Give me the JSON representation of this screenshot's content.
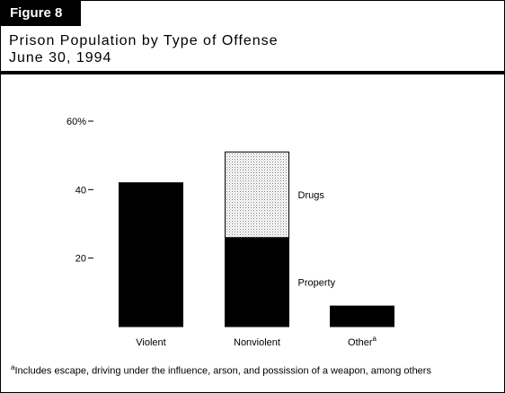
{
  "figure_label": "Figure 8",
  "title_line1": "Prison Population by Type of Offense",
  "title_line2": "June 30, 1994",
  "footnote_marker": "a",
  "footnote_text": "Includes escape, driving under the influence, arson, and possission of a weapon, among others",
  "colors": {
    "bar": "#000000",
    "drugs_pattern": "#9a9a9a"
  },
  "chart_data": {
    "type": "bar",
    "stacked": true,
    "categories": [
      "Violent",
      "Nonviolent",
      "Other"
    ],
    "category_superscripts": [
      "",
      "",
      "a"
    ],
    "series": [
      {
        "name": "Property",
        "values": [
          42,
          26,
          6
        ]
      },
      {
        "name": "Drugs",
        "values": [
          0,
          25,
          0
        ]
      }
    ],
    "ylim": [
      0,
      60
    ],
    "yticks": [
      20,
      40,
      60
    ],
    "ytick_labels": [
      "20",
      "40",
      "60%"
    ],
    "xlabel": "",
    "ylabel": "",
    "legend": "inline labels beside Nonviolent bar",
    "grid": false
  }
}
